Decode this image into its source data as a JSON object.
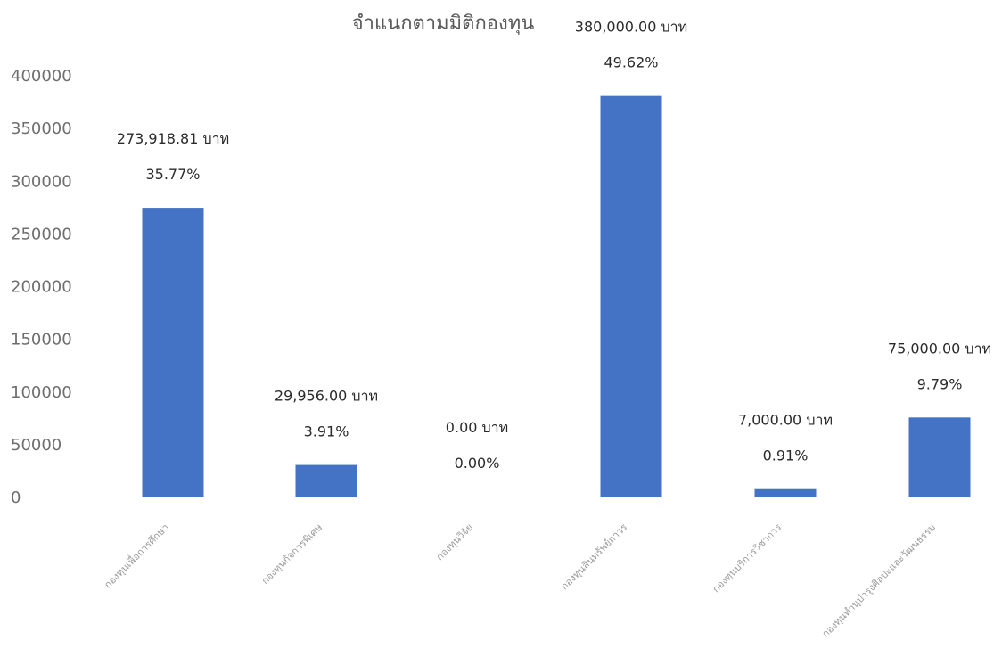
{
  "chart_data": {
    "type": "bar",
    "title": "จำแนกตามมิติกองทุน",
    "xlabel": "",
    "ylabel": "",
    "ylim": [
      0,
      400000
    ],
    "yticks": [
      0,
      50000,
      100000,
      150000,
      200000,
      250000,
      300000,
      350000,
      400000
    ],
    "grid": false,
    "categories": [
      "กองทุนเพื่อการศึกษา",
      "กองทุนกิจการพิเศษ",
      "กองทุนวิจัย",
      "กองทุนสินทรัพย์ถาวร",
      "กองทุนบริการวิชาการ",
      "กองทุนทำนุบำรุงศิลปะและวัฒนธรรม"
    ],
    "values": [
      273918.81,
      29956.0,
      0.0,
      380000.0,
      7000.0,
      75000.0
    ],
    "value_labels": [
      "273,918.81 บาท",
      "29,956.00 บาท",
      "0.00 บาท",
      "380,000.00 บาท",
      "7,000.00 บาท",
      "75,000.00 บาท"
    ],
    "percent_labels": [
      "35.77%",
      "3.91%",
      "0.00%",
      "49.62%",
      "0.91%",
      "9.79%"
    ],
    "bar_color": "#4472c4"
  }
}
